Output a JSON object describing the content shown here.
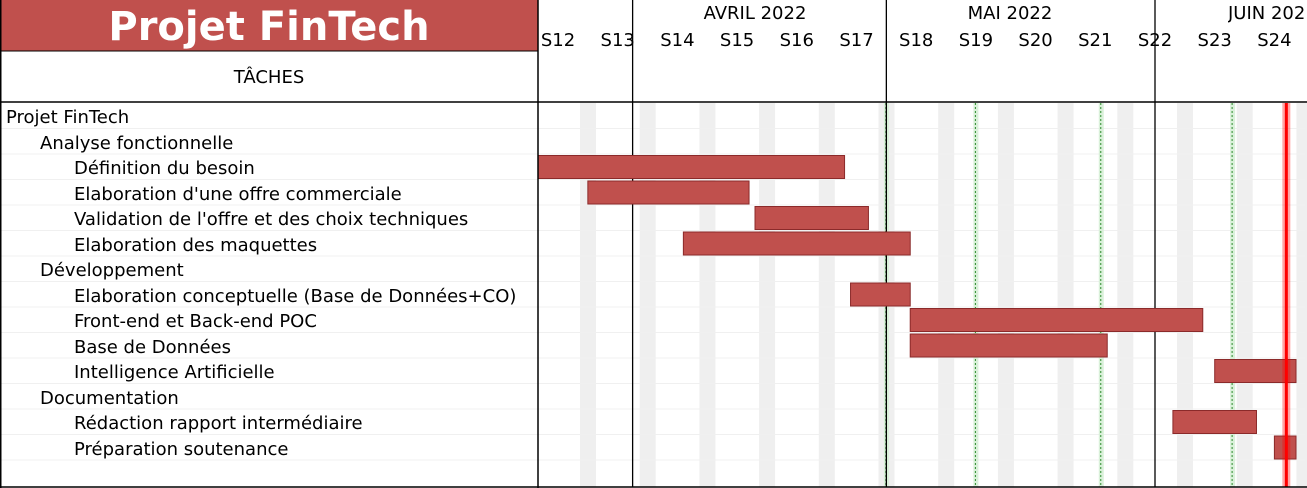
{
  "title": "Projet FinTech",
  "header": "TÂCHES",
  "months": [
    "AVRIL 2022",
    "MAI 2022",
    "JUIN 2022"
  ],
  "weeks": [
    "S12",
    "S13",
    "S14",
    "S15",
    "S16",
    "S17",
    "S18",
    "S19",
    "S20",
    "S21",
    "S22",
    "S23",
    "S24"
  ],
  "tasks": [
    {
      "label": "Projet FinTech",
      "level": 0
    },
    {
      "label": "Analyse fonctionnelle",
      "level": 1
    },
    {
      "label": "Définition du besoin",
      "level": 2
    },
    {
      "label": "Elaboration d'une offre commerciale",
      "level": 2
    },
    {
      "label": "Validation de l'offre et des choix techniques",
      "level": 2
    },
    {
      "label": "Elaboration des maquettes",
      "level": 2
    },
    {
      "label": "Développement",
      "level": 1
    },
    {
      "label": "Elaboration conceptuelle (Base de Données+CO)",
      "level": 2
    },
    {
      "label": "Front-end et Back-end POC",
      "level": 2
    },
    {
      "label": "Base de Données",
      "level": 2
    },
    {
      "label": "Intelligence Artificielle",
      "level": 2
    },
    {
      "label": "Documentation",
      "level": 1
    },
    {
      "label": "Rédaction rapport intermédiaire",
      "level": 2
    },
    {
      "label": "Préparation soutenance",
      "level": 2
    }
  ],
  "chart_data": {
    "type": "gantt",
    "title": "Projet FinTech",
    "x_unit": "week",
    "xlim": [
      11.5,
      24.8
    ],
    "weeks": [
      12,
      13,
      14,
      15,
      16,
      17,
      18,
      19,
      20,
      21,
      22,
      23,
      24
    ],
    "month_boundaries": [
      13.25,
      17.5,
      22
    ],
    "current_week_marker": 24.2,
    "colors": {
      "bar": "#c0504d",
      "title": "#c0504d",
      "marker": "#ff0000",
      "green": "#2e8b2e",
      "weekend": "#efefef"
    },
    "bars": [
      {
        "task": "Définition du besoin",
        "row": 2,
        "start": 11.5,
        "end": 16.8
      },
      {
        "task": "Elaboration d'une offre commerciale",
        "row": 3,
        "start": 12.5,
        "end": 15.2
      },
      {
        "task": "Validation de l'offre et des choix techniques",
        "row": 4,
        "start": 15.3,
        "end": 17.2
      },
      {
        "task": "Elaboration des maquettes",
        "row": 5,
        "start": 14.1,
        "end": 17.9
      },
      {
        "task": "Elaboration conceptuelle (Base de Données+CO)",
        "row": 7,
        "start": 16.9,
        "end": 17.9
      },
      {
        "task": "Front-end et Back-end POC",
        "row": 8,
        "start": 17.9,
        "end": 22.8
      },
      {
        "task": "Base de Données",
        "row": 9,
        "start": 17.9,
        "end": 21.2
      },
      {
        "task": "Intelligence Artificielle",
        "row": 10,
        "start": 23.0,
        "end": 24.8
      },
      {
        "task": "Rédaction rapport intermédiaire",
        "row": 12,
        "start": 22.3,
        "end": 23.7
      },
      {
        "task": "Préparation soutenance",
        "row": 13,
        "start": 24.0,
        "end": 24.8
      }
    ]
  }
}
